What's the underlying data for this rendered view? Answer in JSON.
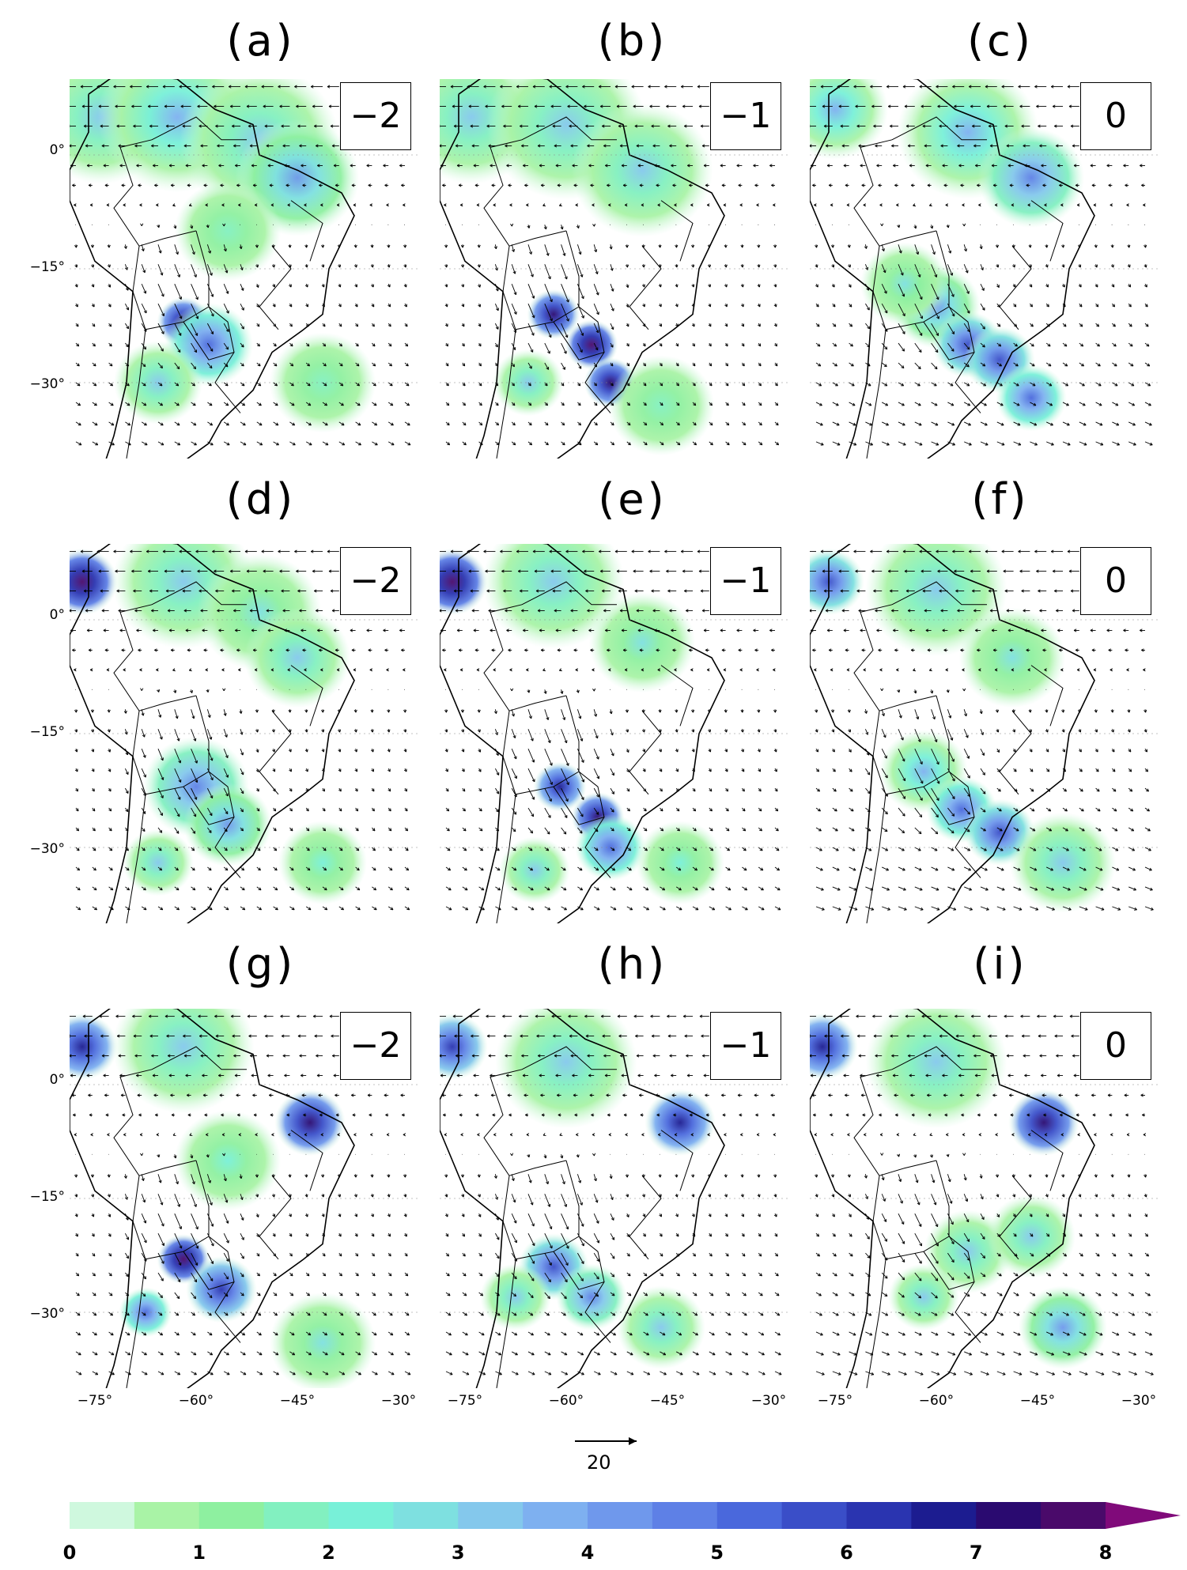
{
  "panels": [
    {
      "label": "(a)",
      "lag": "−2"
    },
    {
      "label": "(b)",
      "lag": "−1"
    },
    {
      "label": "(c)",
      "lag": "0"
    },
    {
      "label": "(d)",
      "lag": "−2"
    },
    {
      "label": "(e)",
      "lag": "−1"
    },
    {
      "label": "(f)",
      "lag": "0"
    },
    {
      "label": "(g)",
      "lag": "−2"
    },
    {
      "label": "(h)",
      "lag": "−1"
    },
    {
      "label": "(i)",
      "lag": "0"
    }
  ],
  "axes": {
    "lat_ticks": [
      "0°",
      "−15°",
      "−30°"
    ],
    "lon_ticks": [
      "−75°",
      "−60°",
      "−45°",
      "−30°"
    ]
  },
  "reference_vector": {
    "label": "20"
  },
  "colorbar": {
    "labels": [
      "0",
      "1",
      "2",
      "3",
      "4",
      "5",
      "6",
      "7",
      "8"
    ],
    "colors": [
      "#cff8de",
      "#a9f3a6",
      "#8ef0a0",
      "#82f0c0",
      "#78f0d8",
      "#7ee0e0",
      "#84c8ec",
      "#7eb0f0",
      "#6f98ec",
      "#5e80e6",
      "#4a68dc",
      "#3a4ec8",
      "#2a34b0",
      "#1c1c90",
      "#2a0a70",
      "#4a0a6a",
      "#800a7a"
    ]
  }
}
